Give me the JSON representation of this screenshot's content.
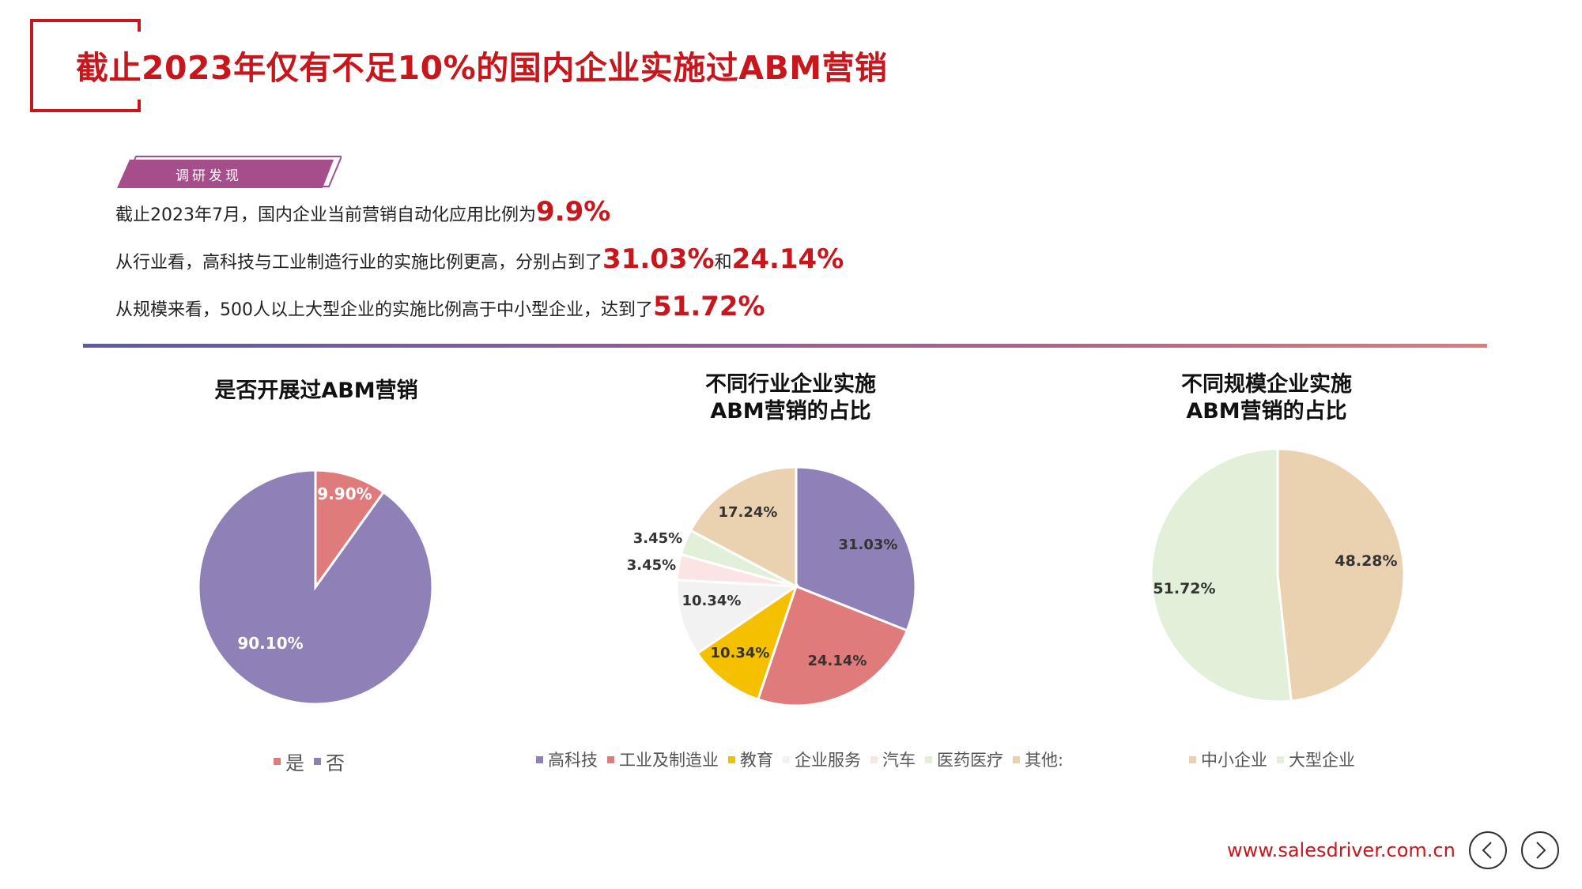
{
  "page": {
    "title": "截止2023年仅有不足10%的国内企业实施过ABM营销",
    "tag": "调研发现",
    "findings": [
      {
        "text": "截止2023年7月，国内企业当前营销自动化应用比例为",
        "h1": "9.9%",
        "mid": "",
        "h2": ""
      },
      {
        "text": "从行业看，高科技与工业制造行业的实施比例更高，分别占到了",
        "h1": "31.03%",
        "mid": "和",
        "h2": "24.14%"
      },
      {
        "text": "从规模来看，500人以上大型企业的实施比例高于中小型企业，达到了",
        "h1": "51.72%",
        "mid": "",
        "h2": ""
      }
    ],
    "website": "www.salesdriver.com.cn",
    "nav": {
      "prev_icon": "chevron-left-icon",
      "next_icon": "chevron-right-icon"
    }
  },
  "chart_data": [
    {
      "type": "pie",
      "title": "是否开展过ABM营销",
      "title_lines": [
        "是否开展过ABM营销"
      ],
      "categories": [
        "是",
        "否"
      ],
      "values": [
        9.9,
        90.1
      ],
      "labels": [
        "9.90%",
        "90.10%"
      ],
      "colors": [
        "#e07b7b",
        "#9080b8"
      ],
      "legend_position": "bottom"
    },
    {
      "type": "pie",
      "title": "不同行业企业实施ABM营销的占比",
      "title_lines": [
        "不同行业企业实施",
        "ABM营销的占比"
      ],
      "categories": [
        "高科技",
        "工业及制造业",
        "教育",
        "企业服务",
        "汽车",
        "医药医疗",
        "其他:"
      ],
      "values": [
        31.03,
        24.14,
        10.34,
        10.34,
        3.45,
        3.45,
        17.24
      ],
      "labels": [
        "31.03%",
        "24.14%",
        "10.34%",
        "10.34%",
        "3.45%",
        "3.45%",
        "17.24%"
      ],
      "colors": [
        "#9080b8",
        "#e07b7b",
        "#f5c000",
        "#f2f2f2",
        "#fbe4e4",
        "#e2efd9",
        "#ead1b0"
      ],
      "legend_position": "bottom"
    },
    {
      "type": "pie",
      "title": "不同规模企业实施ABM营销的占比",
      "title_lines": [
        "不同规模企业实施",
        "ABM营销的占比"
      ],
      "categories": [
        "中小企业",
        "大型企业"
      ],
      "values": [
        48.28,
        51.72
      ],
      "labels": [
        "48.28%",
        "51.72%"
      ],
      "colors": [
        "#ead1b0",
        "#e2efd9"
      ],
      "legend_position": "bottom"
    }
  ]
}
